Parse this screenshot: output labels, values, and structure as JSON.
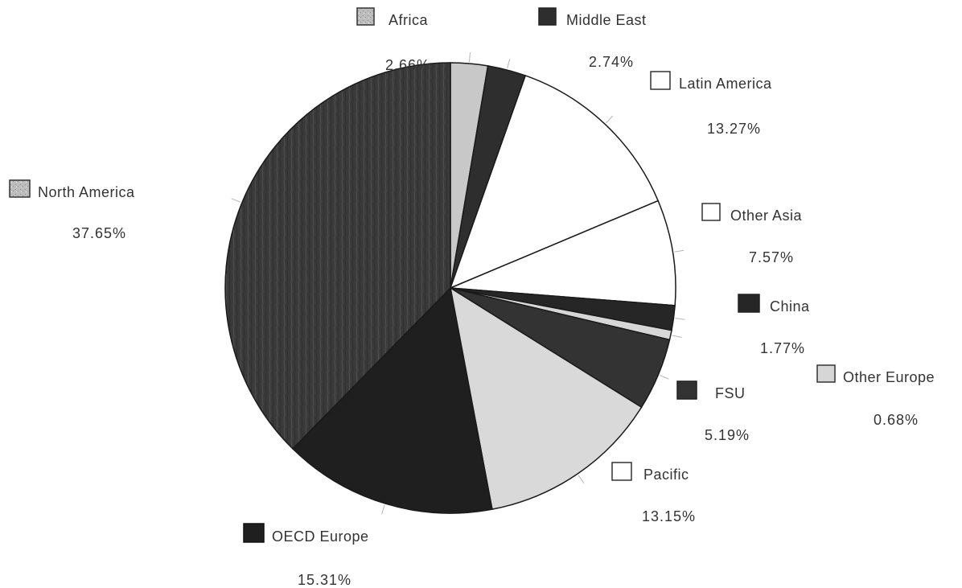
{
  "chart_data": {
    "type": "pie",
    "title": "",
    "unit": "%",
    "slices": [
      {
        "name": "Africa",
        "value": 2.66,
        "label": "2.66%",
        "color": "#c8c8c8"
      },
      {
        "name": "Middle East",
        "value": 2.74,
        "label": "2.74%",
        "color": "#2e2e2e"
      },
      {
        "name": "Latin America",
        "value": 13.27,
        "label": "13.27%",
        "color": "#ffffff"
      },
      {
        "name": "Other Asia",
        "value": 7.57,
        "label": "7.57%",
        "color": "#ffffff"
      },
      {
        "name": "China",
        "value": 1.77,
        "label": "1.77%",
        "color": "#262626"
      },
      {
        "name": "Other Europe",
        "value": 0.68,
        "label": "0.68%",
        "color": "#d6d6d6"
      },
      {
        "name": "FSU",
        "value": 5.19,
        "label": "5.19%",
        "color": "#333333"
      },
      {
        "name": "Pacific",
        "value": 13.15,
        "label": "13.15%",
        "color": "#d9d9d9"
      },
      {
        "name": "OECD Europe",
        "value": 15.31,
        "label": "15.31%",
        "color": "#1f1f1f"
      },
      {
        "name": "North America",
        "value": 37.65,
        "label": "37.65%",
        "color": "#3b3b3b"
      }
    ]
  }
}
